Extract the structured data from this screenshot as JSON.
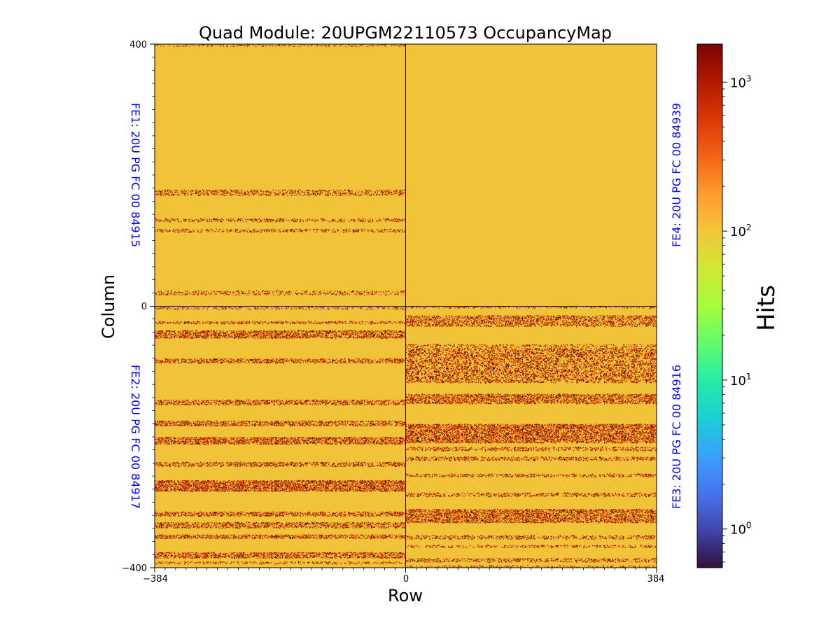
{
  "chart_data": {
    "type": "heatmap",
    "title": "Quad Module: 20UPGM22110573 OccupancyMap",
    "xlabel": "Row",
    "ylabel": "Column",
    "xlim": [
      -384,
      384
    ],
    "ylim": [
      -400,
      400
    ],
    "x_ticks": [
      "−384",
      "0",
      "384"
    ],
    "y_ticks": [
      "400",
      "0",
      "−400"
    ],
    "colorbar": {
      "label": "Hits",
      "scale": "log",
      "range": [
        0.55,
        1800
      ],
      "ticks": [
        {
          "value": 1,
          "base": "10",
          "exp": "0"
        },
        {
          "value": 10,
          "base": "10",
          "exp": "1"
        },
        {
          "value": 100,
          "base": "10",
          "exp": "2"
        },
        {
          "value": 1000,
          "base": "10",
          "exp": "3"
        }
      ],
      "colormap": [
        "#30123b",
        "#4145ab",
        "#4675ed",
        "#39a2fc",
        "#1bcfd4",
        "#24eca6",
        "#61fc6c",
        "#a4fc3b",
        "#d1e834",
        "#f3c63a",
        "#fe9b2d",
        "#f36315",
        "#d93806",
        "#b11901",
        "#7a0402"
      ]
    },
    "base_color": "#f1c339",
    "chip_labels": {
      "fe1": "FE1: 20U PG FC 00 84915",
      "fe2": "FE2: 20U PG FC 00 84917",
      "fe3": "FE3: 20U PG FC 00 84916",
      "fe4": "FE4: 20U PG FC 00 84939"
    },
    "chip_label_color": "#0000ff",
    "quadrants": [
      {
        "name": "FE1",
        "x_range": [
          -384,
          0
        ],
        "y_range": [
          0,
          400
        ],
        "typical_hits": 100,
        "noisy_bands": [
          [
            [
              396,
              400
            ],
            1.6
          ],
          [
            [
              168,
              178
            ],
            2.6
          ],
          [
            [
              128,
              134
            ],
            2.4
          ],
          [
            [
              112,
              118
            ],
            2.4
          ],
          [
            [
              16,
              24
            ],
            2.0
          ]
        ]
      },
      {
        "name": "FE4",
        "x_range": [
          0,
          384
        ],
        "y_range": [
          0,
          400
        ],
        "typical_hits": 100,
        "noisy_bands": []
      },
      {
        "name": "FE2",
        "x_range": [
          -384,
          0
        ],
        "y_range": [
          -400,
          0
        ],
        "typical_hits": 100,
        "noisy_bands": [
          [
            [
              -6,
              -1
            ],
            2.0
          ],
          [
            [
              -28,
              -23
            ],
            3.0
          ],
          [
            [
              -50,
              -37
            ],
            4.6
          ],
          [
            [
              -88,
              -80
            ],
            3.6
          ],
          [
            [
              -152,
              -143
            ],
            3.6
          ],
          [
            [
              -184,
              -175
            ],
            3.8
          ],
          [
            [
              -212,
              -200
            ],
            4.8
          ],
          [
            [
              -246,
              -238
            ],
            3.2
          ],
          [
            [
              -284,
              -266
            ],
            5.6
          ],
          [
            [
              -322,
              -314
            ],
            3.8
          ],
          [
            [
              -340,
              -330
            ],
            3.8
          ],
          [
            [
              -356,
              -349
            ],
            3.8
          ],
          [
            [
              -386,
              -376
            ],
            4.2
          ],
          [
            [
              -395,
              -390
            ],
            2.0
          ]
        ]
      },
      {
        "name": "FE3",
        "x_range": [
          0,
          384
        ],
        "y_range": [
          -400,
          0
        ],
        "typical_hits": 100,
        "noisy_bands": [
          [
            [
              -4,
              0
            ],
            1.6
          ],
          [
            [
              -32,
              -14
            ],
            3.6
          ],
          [
            [
              -64,
              -58
            ],
            1.8
          ],
          [
            [
              -118,
              -64
            ],
            6.2
          ],
          [
            [
              -150,
              -134
            ],
            4.4
          ],
          [
            [
              -210,
              -180
            ],
            6.2
          ],
          [
            [
              -222,
              -215
            ],
            2.6
          ],
          [
            [
              -237,
              -230
            ],
            2.8
          ],
          [
            [
              -262,
              -256
            ],
            2.6
          ],
          [
            [
              -292,
              -285
            ],
            2.6
          ],
          [
            [
              -332,
              -310
            ],
            4.6
          ],
          [
            [
              -357,
              -350
            ],
            2.4
          ],
          [
            [
              -370,
              -365
            ],
            2.0
          ],
          [
            [
              -392,
              -385
            ],
            2.6
          ],
          [
            [
              -400,
              -396
            ],
            1.6
          ]
        ]
      }
    ]
  }
}
